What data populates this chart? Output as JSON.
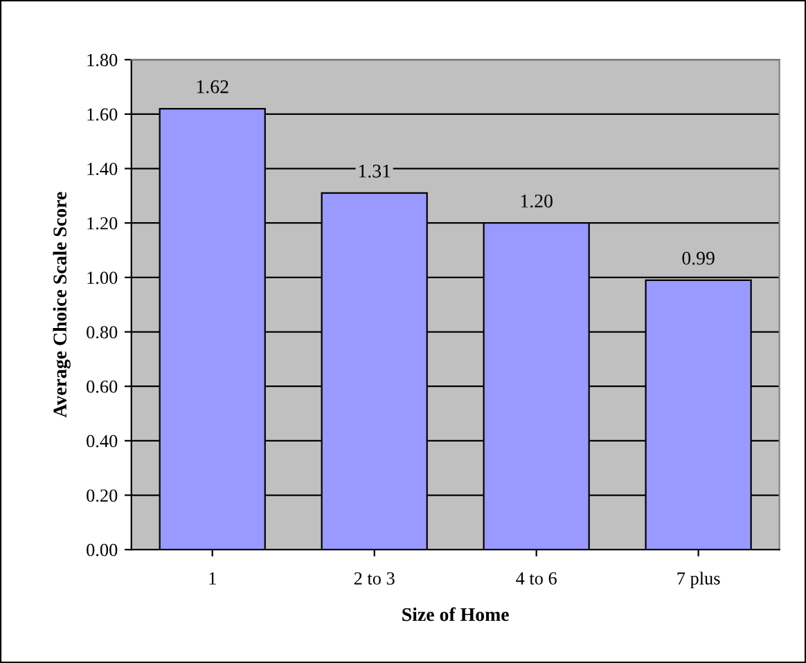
{
  "chart_data": {
    "type": "bar",
    "xlabel": "Size of Home",
    "ylabel": "Average Choice Scale Score",
    "categories": [
      "1",
      "2 to 3",
      "4 to 6",
      "7 plus"
    ],
    "values": [
      1.62,
      1.31,
      1.2,
      0.99
    ],
    "value_labels": [
      "1.62",
      "1.31",
      "1.20",
      "0.99"
    ],
    "color": "#9999ff",
    "ylim": [
      0,
      1.8
    ],
    "yticks": [
      {
        "value": 0,
        "label": "0.00"
      },
      {
        "value": 0.2,
        "label": "0.20"
      },
      {
        "value": 0.4,
        "label": "0.40"
      },
      {
        "value": 0.6,
        "label": "0.60"
      },
      {
        "value": 0.8,
        "label": "0.80"
      },
      {
        "value": 1.0,
        "label": "1.00"
      },
      {
        "value": 1.2,
        "label": "1.20"
      },
      {
        "value": 1.4,
        "label": "1.40"
      },
      {
        "value": 1.6,
        "label": "1.60"
      },
      {
        "value": 1.8,
        "label": "1.80"
      }
    ],
    "grid": "y"
  }
}
